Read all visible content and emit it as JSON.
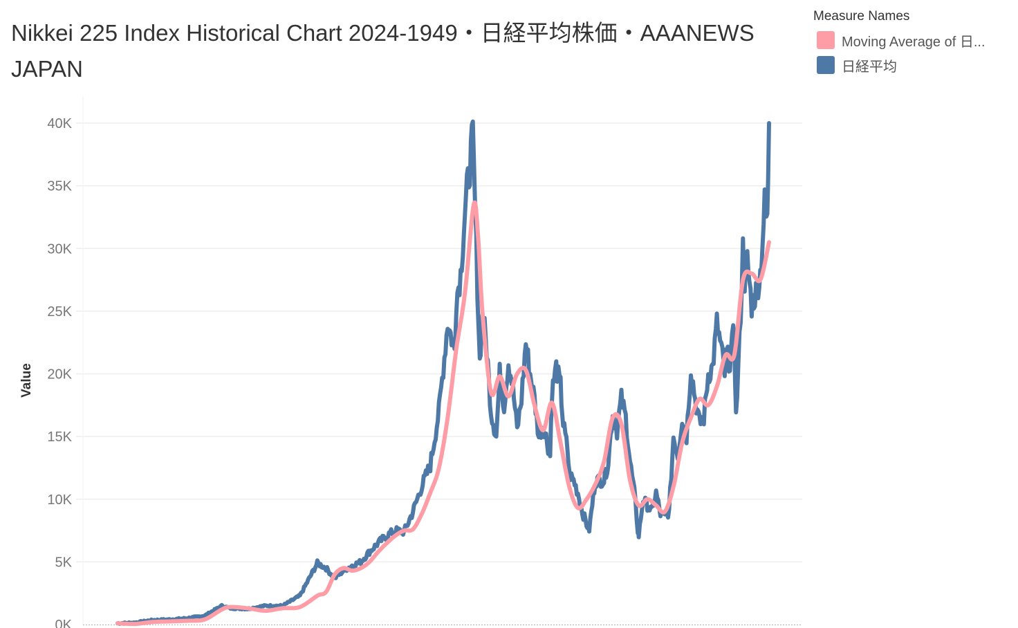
{
  "header": {
    "title": "Nikkei 225 Index Historical Chart 2024-1949・日経平均株価・AAANEWS JAPAN"
  },
  "legend": {
    "title": "Measure Names",
    "items": [
      {
        "label": "Moving Average of 日...",
        "color": "#FF9DA7"
      },
      {
        "label": "日経平均",
        "color": "#4E79A7"
      }
    ]
  },
  "axis": {
    "y_title": "Value",
    "y_ticks": [
      "0K",
      "5K",
      "10K",
      "15K",
      "20K",
      "25K",
      "30K",
      "35K",
      "40K"
    ]
  },
  "colors": {
    "nikkei": "#4E79A7",
    "moving_average": "#FF9DA7",
    "gridline": "#EEEEEE",
    "axis_text": "#777777"
  },
  "chart_data": {
    "type": "line",
    "title": "Nikkei 225 Index Historical Chart 2024-1949・日経平均株価・AAANEWS JAPAN",
    "xlabel": "",
    "ylabel": "Value",
    "ylim": [
      0,
      40000
    ],
    "xlim": [
      1949,
      2024
    ],
    "grid": true,
    "legend_position": "right",
    "legend_title": "Measure Names",
    "y_tick_labels": [
      "0K",
      "5K",
      "10K",
      "15K",
      "20K",
      "25K",
      "30K",
      "35K",
      "40K"
    ],
    "series": [
      {
        "name": "日経平均",
        "color": "#4E79A7",
        "x": [
          1949,
          1951,
          1953,
          1955,
          1957,
          1959,
          1961,
          1962,
          1964,
          1966,
          1968,
          1970,
          1972,
          1973,
          1974,
          1975,
          1976,
          1977,
          1978,
          1979,
          1980,
          1981,
          1982,
          1983,
          1984,
          1985,
          1986,
          1987,
          1987.8,
          1988,
          1988.5,
          1989,
          1989.9,
          1990.3,
          1990.7,
          1991,
          1991.5,
          1992,
          1992.6,
          1993,
          1993.5,
          1994,
          1994.5,
          1995,
          1995.5,
          1996,
          1996.5,
          1997,
          1997.5,
          1998,
          1998.8,
          1999,
          1999.5,
          2000,
          2000.3,
          2000.8,
          2001,
          2001.5,
          2002,
          2002.5,
          2003,
          2003.3,
          2004,
          2005,
          2005.5,
          2006,
          2006.5,
          2007,
          2007.5,
          2008,
          2008.5,
          2008.9,
          2009,
          2009.5,
          2010,
          2010.5,
          2011,
          2011.5,
          2012,
          2012.5,
          2013,
          2013.5,
          2014,
          2014.5,
          2015,
          2015.5,
          2016,
          2016.5,
          2017,
          2017.5,
          2018,
          2018.5,
          2018.9,
          2019,
          2019.5,
          2020,
          2020.2,
          2020.6,
          2021,
          2021.2,
          2021.5,
          2022,
          2022.5,
          2023,
          2023.5,
          2023.8,
          2024
        ],
        "values": [
          100,
          150,
          350,
          400,
          500,
          700,
          1500,
          1300,
          1250,
          1500,
          1500,
          2300,
          4900,
          4500,
          3700,
          4300,
          4700,
          5000,
          5800,
          6500,
          7100,
          7500,
          7400,
          9000,
          11000,
          12700,
          17000,
          24000,
          22000,
          26000,
          28000,
          33000,
          38900,
          30000,
          21000,
          25000,
          22000,
          17000,
          15000,
          20000,
          17500,
          21000,
          19000,
          15500,
          18000,
          22500,
          20000,
          18000,
          15000,
          16000,
          13500,
          18500,
          20500,
          19000,
          16000,
          14000,
          12000,
          11500,
          10500,
          9000,
          8000,
          7600,
          11500,
          11500,
          13000,
          17000,
          15500,
          18000,
          16500,
          13000,
          10500,
          7500,
          7100,
          10000,
          9500,
          9000,
          10500,
          8800,
          8600,
          9000,
          15000,
          13500,
          16500,
          15000,
          20500,
          18000,
          16000,
          16500,
          20000,
          20500,
          24000,
          22000,
          20000,
          21500,
          21000,
          23500,
          16500,
          22500,
          30000,
          27500,
          29000,
          25500,
          26500,
          28000,
          33500,
          32000,
          40000
        ]
      },
      {
        "name": "Moving Average of 日経平均",
        "color": "#FF9DA7",
        "x": [
          1949,
          1951,
          1953,
          1955,
          1957,
          1959,
          1961,
          1962,
          1964,
          1966,
          1968,
          1970,
          1972,
          1973,
          1974,
          1975,
          1976,
          1977,
          1978,
          1979,
          1980,
          1981,
          1982,
          1983,
          1984,
          1985,
          1986,
          1987,
          1988,
          1989,
          1990,
          1990.5,
          1991,
          1992,
          1993,
          1994,
          1995,
          1996,
          1997,
          1998,
          1999,
          2000,
          2001,
          2002,
          2003,
          2004,
          2005,
          2006,
          2007,
          2008,
          2009,
          2010,
          2011,
          2012,
          2013,
          2014,
          2015,
          2016,
          2017,
          2018,
          2019,
          2020,
          2021,
          2022,
          2023,
          2024
        ],
        "values": [
          100,
          50,
          200,
          250,
          300,
          400,
          1200,
          1400,
          1300,
          1100,
          1300,
          1400,
          2300,
          2600,
          4000,
          4500,
          4300,
          4500,
          5000,
          5800,
          6500,
          7100,
          7500,
          7600,
          8800,
          10500,
          12500,
          16500,
          22000,
          26500,
          33500,
          31000,
          25000,
          18500,
          19800,
          18200,
          20000,
          20300,
          17500,
          15500,
          17700,
          14500,
          11000,
          9300,
          10000,
          11200,
          13000,
          16500,
          16000,
          11500,
          9500,
          10000,
          9500,
          9000,
          11000,
          14500,
          16500,
          18000,
          17500,
          19000,
          21500,
          21500,
          27500,
          28000,
          27500,
          30500
        ]
      }
    ]
  }
}
